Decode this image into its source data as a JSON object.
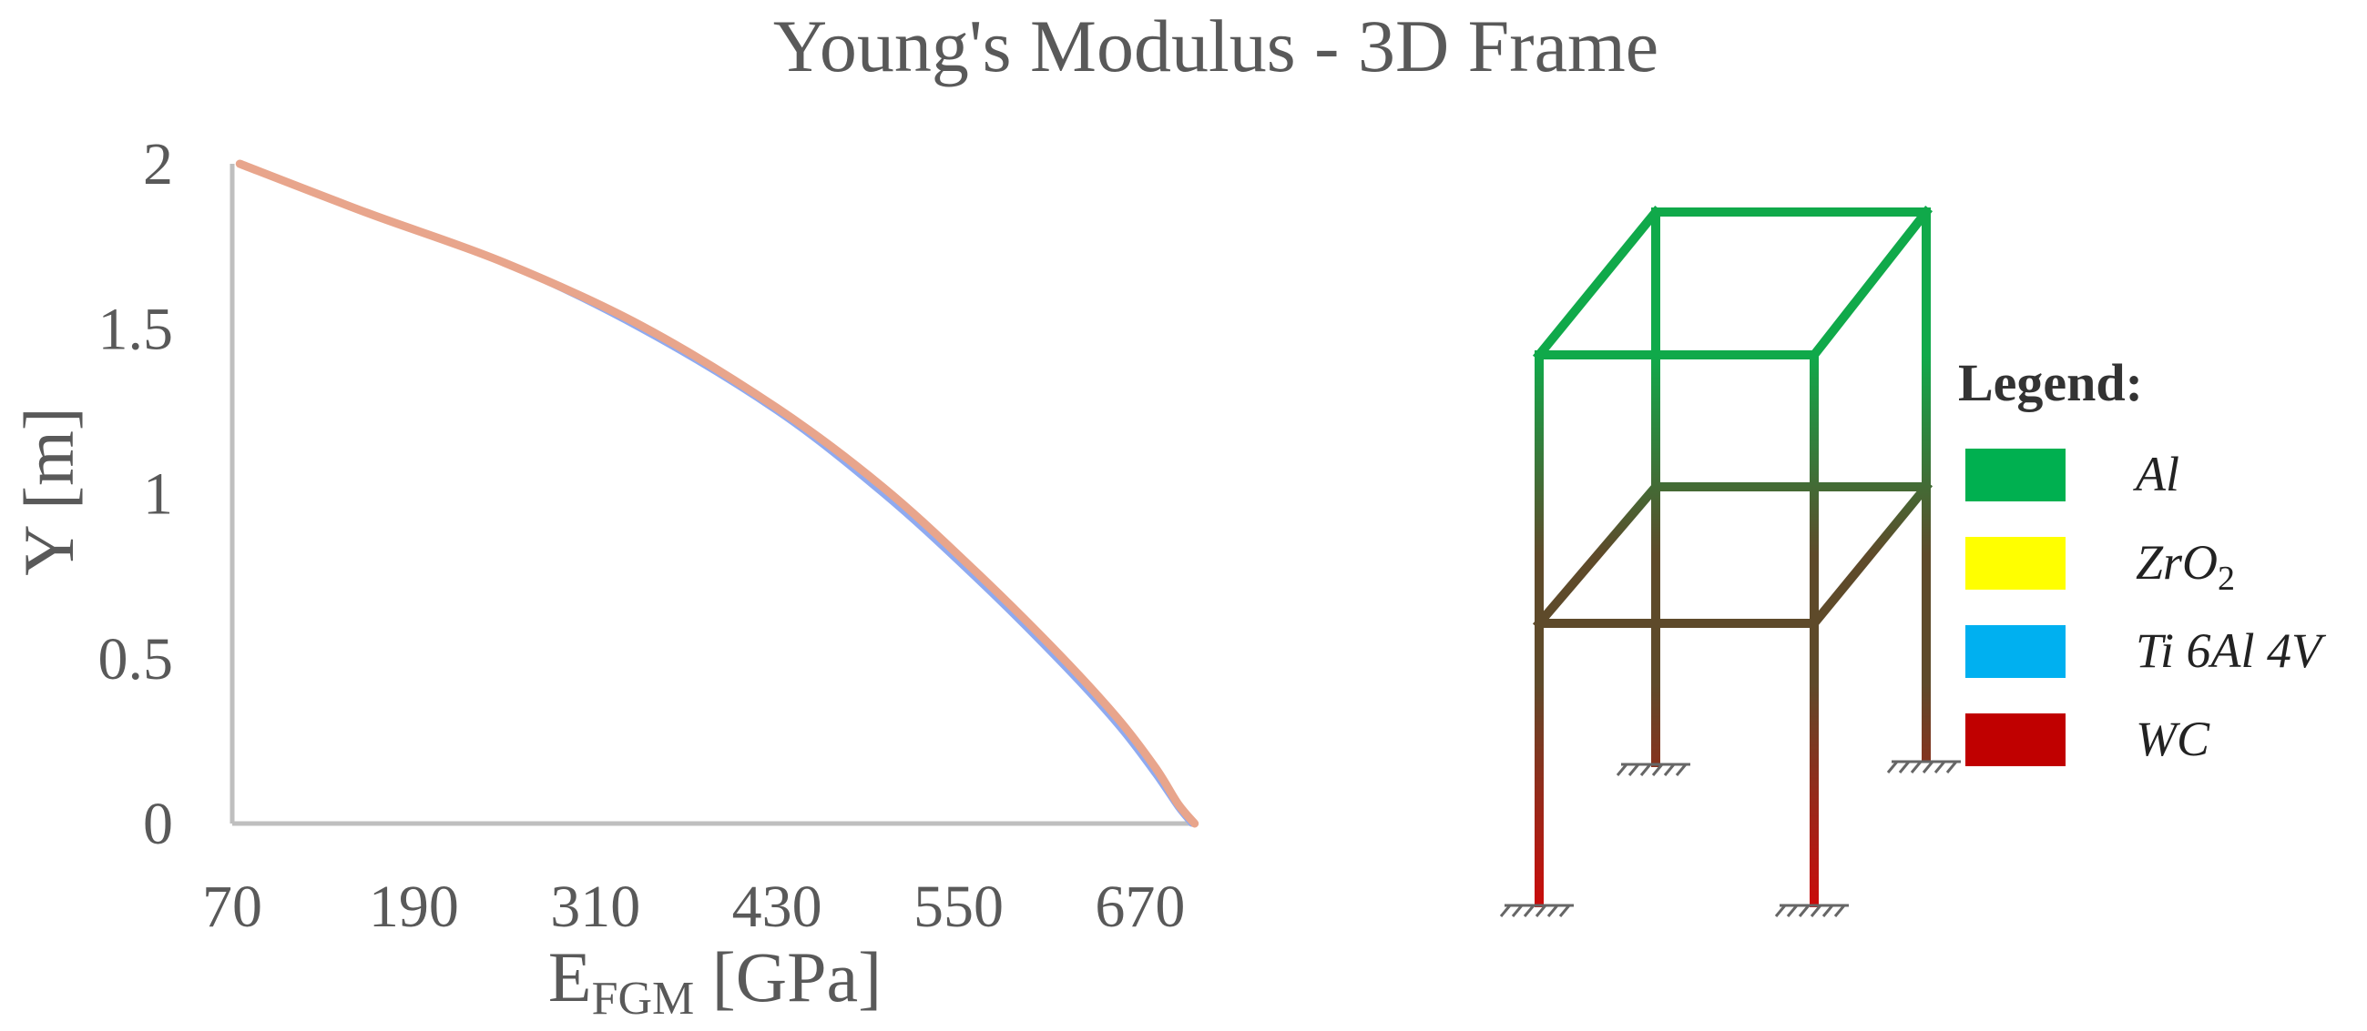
{
  "chart_data": {
    "type": "line",
    "title": "Young's Modulus - 3D Frame",
    "xlabel_main": "E",
    "xlabel_sub": "FGM",
    "xlabel_unit": " [GPa]",
    "ylabel": "Y [m]",
    "xlim": [
      70,
      708
    ],
    "ylim": [
      0,
      2
    ],
    "x_ticks": [
      "70",
      "190",
      "310",
      "430",
      "550",
      "670"
    ],
    "y_ticks": [
      "0",
      "0.5",
      "1",
      "1.5",
      "2"
    ],
    "grid": false,
    "series": [
      {
        "color": "#8FAAF0",
        "points": [
          [
            75,
            2.0
          ],
          [
            160,
            1.85
          ],
          [
            250,
            1.7
          ],
          [
            340,
            1.5
          ],
          [
            430,
            1.25
          ],
          [
            500,
            1.0
          ],
          [
            560,
            0.75
          ],
          [
            615,
            0.5
          ],
          [
            655,
            0.3
          ],
          [
            680,
            0.15
          ],
          [
            695,
            0.05
          ],
          [
            704,
            0.0
          ]
        ]
      },
      {
        "color": "#E8A58C",
        "points": [
          [
            75,
            2.0
          ],
          [
            160,
            1.85
          ],
          [
            250,
            1.7
          ],
          [
            340,
            1.51
          ],
          [
            430,
            1.26
          ],
          [
            500,
            1.02
          ],
          [
            560,
            0.77
          ],
          [
            615,
            0.52
          ],
          [
            655,
            0.32
          ],
          [
            680,
            0.17
          ],
          [
            695,
            0.06
          ],
          [
            706,
            0.0
          ]
        ]
      }
    ]
  },
  "frame": {
    "colors": {
      "top": "#10A94A",
      "mid": "#5E4A2A",
      "bottom": "#CC0A0A",
      "support": "#666666"
    }
  },
  "legend": {
    "title": "Legend:",
    "items": [
      {
        "label": "Al",
        "color": "#00B050"
      },
      {
        "label": "ZrO",
        "sub": "2",
        "color": "#FFFF00"
      },
      {
        "label": "Ti 6Al 4V",
        "color": "#00B0F0"
      },
      {
        "label": "WC",
        "color": "#C00000"
      }
    ]
  }
}
